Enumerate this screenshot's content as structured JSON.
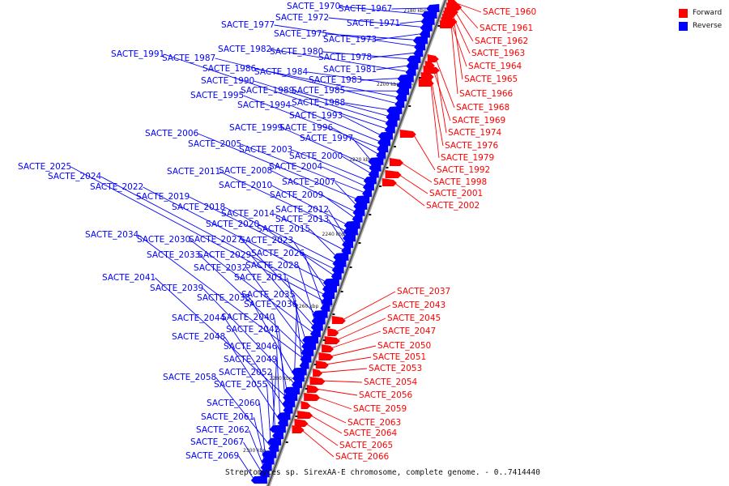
{
  "legend": {
    "forward": {
      "label": "Forward",
      "color": "#ff0000"
    },
    "reverse": {
      "label": "Reverse",
      "color": "#0000ff"
    }
  },
  "caption": "Streptomyces sp. SirexAA-E chromosome, complete genome. - 0..7414440",
  "axis_ticks": [
    "2180 kbp",
    "2200 kbp",
    "2220 kbp",
    "2240 kbp",
    "2260 kbp",
    "2280 kbp",
    "2300 kbp"
  ],
  "genes": [
    {
      "id": "SACTE_1960",
      "strand": "forward"
    },
    {
      "id": "SACTE_1961",
      "strand": "forward"
    },
    {
      "id": "SACTE_1962",
      "strand": "forward"
    },
    {
      "id": "SACTE_1963",
      "strand": "forward"
    },
    {
      "id": "SACTE_1964",
      "strand": "forward"
    },
    {
      "id": "SACTE_1965",
      "strand": "forward"
    },
    {
      "id": "SACTE_1966",
      "strand": "forward"
    },
    {
      "id": "SACTE_1967",
      "strand": "reverse"
    },
    {
      "id": "SACTE_1968",
      "strand": "forward"
    },
    {
      "id": "SACTE_1969",
      "strand": "forward"
    },
    {
      "id": "SACTE_1970",
      "strand": "reverse"
    },
    {
      "id": "SACTE_1971",
      "strand": "reverse"
    },
    {
      "id": "SACTE_1972",
      "strand": "reverse"
    },
    {
      "id": "SACTE_1973",
      "strand": "reverse"
    },
    {
      "id": "SACTE_1974",
      "strand": "forward"
    },
    {
      "id": "SACTE_1975",
      "strand": "reverse"
    },
    {
      "id": "SACTE_1976",
      "strand": "forward"
    },
    {
      "id": "SACTE_1977",
      "strand": "reverse"
    },
    {
      "id": "SACTE_1978",
      "strand": "reverse"
    },
    {
      "id": "SACTE_1979",
      "strand": "forward"
    },
    {
      "id": "SACTE_1980",
      "strand": "reverse"
    },
    {
      "id": "SACTE_1981",
      "strand": "reverse"
    },
    {
      "id": "SACTE_1982",
      "strand": "reverse"
    },
    {
      "id": "SACTE_1983",
      "strand": "reverse"
    },
    {
      "id": "SACTE_1984",
      "strand": "reverse"
    },
    {
      "id": "SACTE_1985",
      "strand": "reverse"
    },
    {
      "id": "SACTE_1986",
      "strand": "reverse"
    },
    {
      "id": "SACTE_1987",
      "strand": "reverse"
    },
    {
      "id": "SACTE_1988",
      "strand": "reverse"
    },
    {
      "id": "SACTE_1989",
      "strand": "reverse"
    },
    {
      "id": "SACTE_1990",
      "strand": "reverse"
    },
    {
      "id": "SACTE_1991",
      "strand": "reverse"
    },
    {
      "id": "SACTE_1992",
      "strand": "forward"
    },
    {
      "id": "SACTE_1993",
      "strand": "reverse"
    },
    {
      "id": "SACTE_1994",
      "strand": "reverse"
    },
    {
      "id": "SACTE_1995",
      "strand": "reverse"
    },
    {
      "id": "SACTE_1996",
      "strand": "reverse"
    },
    {
      "id": "SACTE_1997",
      "strand": "reverse"
    },
    {
      "id": "SACTE_1998",
      "strand": "forward"
    },
    {
      "id": "SACTE_1999",
      "strand": "reverse"
    },
    {
      "id": "SACTE_2000",
      "strand": "reverse"
    },
    {
      "id": "SACTE_2001",
      "strand": "forward"
    },
    {
      "id": "SACTE_2002",
      "strand": "forward"
    },
    {
      "id": "SACTE_2003",
      "strand": "reverse"
    },
    {
      "id": "SACTE_2004",
      "strand": "reverse"
    },
    {
      "id": "SACTE_2005",
      "strand": "reverse"
    },
    {
      "id": "SACTE_2006",
      "strand": "reverse"
    },
    {
      "id": "SACTE_2007",
      "strand": "reverse"
    },
    {
      "id": "SACTE_2008",
      "strand": "reverse"
    },
    {
      "id": "SACTE_2009",
      "strand": "reverse"
    },
    {
      "id": "SACTE_2010",
      "strand": "reverse"
    },
    {
      "id": "SACTE_2011",
      "strand": "reverse"
    },
    {
      "id": "SACTE_2012",
      "strand": "reverse"
    },
    {
      "id": "SACTE_2013",
      "strand": "reverse"
    },
    {
      "id": "SACTE_2014",
      "strand": "reverse"
    },
    {
      "id": "SACTE_2015",
      "strand": "reverse"
    },
    {
      "id": "SACTE_2018",
      "strand": "reverse"
    },
    {
      "id": "SACTE_2019",
      "strand": "reverse"
    },
    {
      "id": "SACTE_2020",
      "strand": "reverse"
    },
    {
      "id": "SACTE_2022",
      "strand": "reverse"
    },
    {
      "id": "SACTE_2023",
      "strand": "reverse"
    },
    {
      "id": "SACTE_2024",
      "strand": "reverse"
    },
    {
      "id": "SACTE_2025",
      "strand": "reverse"
    },
    {
      "id": "SACTE_2026",
      "strand": "reverse"
    },
    {
      "id": "SACTE_2027",
      "strand": "reverse"
    },
    {
      "id": "SACTE_2028",
      "strand": "reverse"
    },
    {
      "id": "SACTE_2029",
      "strand": "reverse"
    },
    {
      "id": "SACTE_2030",
      "strand": "reverse"
    },
    {
      "id": "SACTE_2031",
      "strand": "reverse"
    },
    {
      "id": "SACTE_2032",
      "strand": "reverse"
    },
    {
      "id": "SACTE_2033",
      "strand": "reverse"
    },
    {
      "id": "SACTE_2034",
      "strand": "reverse"
    },
    {
      "id": "SACTE_2035",
      "strand": "reverse"
    },
    {
      "id": "SACTE_2036",
      "strand": "reverse"
    },
    {
      "id": "SACTE_2037",
      "strand": "forward"
    },
    {
      "id": "SACTE_2038",
      "strand": "reverse"
    },
    {
      "id": "SACTE_2039",
      "strand": "reverse"
    },
    {
      "id": "SACTE_2040",
      "strand": "reverse"
    },
    {
      "id": "SACTE_2041",
      "strand": "reverse"
    },
    {
      "id": "SACTE_2042",
      "strand": "reverse"
    },
    {
      "id": "SACTE_2043",
      "strand": "forward"
    },
    {
      "id": "SACTE_2044",
      "strand": "reverse"
    },
    {
      "id": "SACTE_2045",
      "strand": "forward"
    },
    {
      "id": "SACTE_2046",
      "strand": "reverse"
    },
    {
      "id": "SACTE_2047",
      "strand": "forward"
    },
    {
      "id": "SACTE_2048",
      "strand": "reverse"
    },
    {
      "id": "SACTE_2049",
      "strand": "reverse"
    },
    {
      "id": "SACTE_2050",
      "strand": "forward"
    },
    {
      "id": "SACTE_2051",
      "strand": "forward"
    },
    {
      "id": "SACTE_2052",
      "strand": "reverse"
    },
    {
      "id": "SACTE_2053",
      "strand": "forward"
    },
    {
      "id": "SACTE_2054",
      "strand": "forward"
    },
    {
      "id": "SACTE_2055",
      "strand": "reverse"
    },
    {
      "id": "SACTE_2056",
      "strand": "forward"
    },
    {
      "id": "SACTE_2058",
      "strand": "reverse"
    },
    {
      "id": "SACTE_2059",
      "strand": "forward"
    },
    {
      "id": "SACTE_2060",
      "strand": "reverse"
    },
    {
      "id": "SACTE_2061",
      "strand": "reverse"
    },
    {
      "id": "SACTE_2062",
      "strand": "reverse"
    },
    {
      "id": "SACTE_2063",
      "strand": "forward"
    },
    {
      "id": "SACTE_2064",
      "strand": "forward"
    },
    {
      "id": "SACTE_2065",
      "strand": "forward"
    },
    {
      "id": "SACTE_2066",
      "strand": "forward"
    },
    {
      "id": "SACTE_2067",
      "strand": "reverse"
    },
    {
      "id": "SACTE_2069",
      "strand": "reverse"
    }
  ]
}
